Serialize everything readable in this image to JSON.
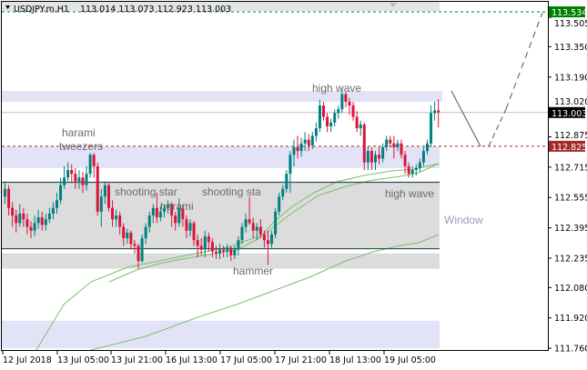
{
  "header": {
    "symbol": "USDJPY.m,H1",
    "ohlc_text": "113.014 113.073 112.923 113.003",
    "menu_icon": "triangle-down-icon"
  },
  "price_axis": {
    "ticks": [
      "113.505",
      "113.350",
      "113.190",
      "113.020",
      "112.875",
      "112.715",
      "112.555",
      "112.395",
      "112.235",
      "112.080",
      "111.920",
      "111.760"
    ],
    "tick_values": [
      113.505,
      113.35,
      113.19,
      113.02,
      112.875,
      112.715,
      112.555,
      112.395,
      112.235,
      112.08,
      111.92,
      111.76
    ],
    "marker_target": {
      "text": "113.534",
      "value": 113.534,
      "color": "#008000"
    },
    "marker_bid": {
      "text": "113.003",
      "value": 113.003,
      "color": "#000000"
    },
    "marker_level": {
      "text": "112.825",
      "value": 112.825,
      "color": "#a52a2a"
    }
  },
  "time_axis": {
    "labels": [
      "12 Jul 2018",
      "13 Jul 05:00",
      "13 Jul 21:00",
      "16 Jul 13:00",
      "17 Jul 05:00",
      "17 Jul 21:00",
      "18 Jul 13:00",
      "19 Jul 05:00"
    ]
  },
  "annotations": [
    {
      "text": "harami",
      "bar": 17
    },
    {
      "text": "tweezers",
      "bar": 17
    },
    {
      "text": "shooting star",
      "bar": 41
    },
    {
      "text": "harami",
      "bar": 48
    },
    {
      "text": "shooting sta",
      "bar": 66
    },
    {
      "text": "hammer",
      "bar": 71
    },
    {
      "text": "high wave",
      "bar": 91
    },
    {
      "text": "high wave",
      "bar": 111
    },
    {
      "text": "Window",
      "bar": 125
    }
  ],
  "zones": [
    {
      "type": "resistance",
      "from": 113.06,
      "to": 113.117,
      "color": "#e3e3f8"
    },
    {
      "type": "support",
      "from": 112.71,
      "to": 112.825,
      "color": "#e3e3f8"
    },
    {
      "type": "range",
      "from": 112.285,
      "to": 112.635,
      "color": "#dcdcdc"
    },
    {
      "type": "window",
      "from": 112.18,
      "to": 112.26,
      "color": "#dcdcdc"
    },
    {
      "type": "support",
      "from": 111.76,
      "to": 111.905,
      "color": "#e3e3f8"
    }
  ],
  "colors": {
    "bull": "#00807f",
    "bear": "#dc143c",
    "ma": "#7cbf6e"
  },
  "chart_data": {
    "type": "candlestick",
    "ylim": [
      111.76,
      113.534
    ],
    "ohlc": [
      [
        112.56,
        112.64,
        112.52,
        112.6
      ],
      [
        112.6,
        112.62,
        112.46,
        112.5
      ],
      [
        112.5,
        112.53,
        112.4,
        112.46
      ],
      [
        112.46,
        112.49,
        112.37,
        112.42
      ],
      [
        112.42,
        112.52,
        112.4,
        112.47
      ],
      [
        112.47,
        112.5,
        112.4,
        112.44
      ],
      [
        112.44,
        112.47,
        112.36,
        112.4
      ],
      [
        112.4,
        112.43,
        112.34,
        112.38
      ],
      [
        112.38,
        112.46,
        112.35,
        112.42
      ],
      [
        112.42,
        112.49,
        112.39,
        112.45
      ],
      [
        112.45,
        112.48,
        112.38,
        112.41
      ],
      [
        112.41,
        112.47,
        112.38,
        112.44
      ],
      [
        112.44,
        112.5,
        112.42,
        112.47
      ],
      [
        112.47,
        112.53,
        112.44,
        112.5
      ],
      [
        112.5,
        112.58,
        112.47,
        112.54
      ],
      [
        112.54,
        112.66,
        112.52,
        112.62
      ],
      [
        112.62,
        112.72,
        112.6,
        112.66
      ],
      [
        112.66,
        112.74,
        112.64,
        112.7
      ],
      [
        112.7,
        112.73,
        112.63,
        112.68
      ],
      [
        112.68,
        112.71,
        112.6,
        112.64
      ],
      [
        112.64,
        112.7,
        112.6,
        112.66
      ],
      [
        112.66,
        112.69,
        112.58,
        112.62
      ],
      [
        112.62,
        112.72,
        112.59,
        112.68
      ],
      [
        112.68,
        112.79,
        112.66,
        112.78
      ],
      [
        112.78,
        112.79,
        112.66,
        112.72
      ],
      [
        112.72,
        112.74,
        112.46,
        112.48
      ],
      [
        112.48,
        112.6,
        112.4,
        112.56
      ],
      [
        112.56,
        112.64,
        112.52,
        112.62
      ],
      [
        112.62,
        112.63,
        112.48,
        112.5
      ],
      [
        112.5,
        112.54,
        112.4,
        112.44
      ],
      [
        112.44,
        112.49,
        112.4,
        112.46
      ],
      [
        112.46,
        112.48,
        112.36,
        112.4
      ],
      [
        112.4,
        112.42,
        112.3,
        112.34
      ],
      [
        112.34,
        112.39,
        112.31,
        112.37
      ],
      [
        112.37,
        112.38,
        112.28,
        112.31
      ],
      [
        112.31,
        112.33,
        112.26,
        112.3
      ],
      [
        112.3,
        112.31,
        112.18,
        112.22
      ],
      [
        112.22,
        112.36,
        112.21,
        112.34
      ],
      [
        112.34,
        112.42,
        112.31,
        112.4
      ],
      [
        112.4,
        112.48,
        112.37,
        112.46
      ],
      [
        112.46,
        112.52,
        112.42,
        112.5
      ],
      [
        112.5,
        112.58,
        112.42,
        112.45
      ],
      [
        112.45,
        112.51,
        112.43,
        112.48
      ],
      [
        112.48,
        112.52,
        112.45,
        112.5
      ],
      [
        112.5,
        112.54,
        112.47,
        112.52
      ],
      [
        112.52,
        112.53,
        112.4,
        112.46
      ],
      [
        112.46,
        112.48,
        112.38,
        112.42
      ],
      [
        112.42,
        112.55,
        112.4,
        112.5
      ],
      [
        112.5,
        112.52,
        112.4,
        112.44
      ],
      [
        112.44,
        112.46,
        112.34,
        112.38
      ],
      [
        112.38,
        112.44,
        112.35,
        112.42
      ],
      [
        112.42,
        112.43,
        112.3,
        112.33
      ],
      [
        112.33,
        112.36,
        112.24,
        112.3
      ],
      [
        112.3,
        112.34,
        112.25,
        112.28
      ],
      [
        112.28,
        112.38,
        112.24,
        112.35
      ],
      [
        112.35,
        112.37,
        112.27,
        112.32
      ],
      [
        112.32,
        112.34,
        112.24,
        112.27
      ],
      [
        112.27,
        112.3,
        112.23,
        112.26
      ],
      [
        112.26,
        112.31,
        112.23,
        112.28
      ],
      [
        112.28,
        112.3,
        112.24,
        112.27
      ],
      [
        112.27,
        112.31,
        112.24,
        112.29
      ],
      [
        112.29,
        112.3,
        112.22,
        112.25
      ],
      [
        112.25,
        112.3,
        112.23,
        112.28
      ],
      [
        112.28,
        112.35,
        112.25,
        112.33
      ],
      [
        112.33,
        112.42,
        112.31,
        112.4
      ],
      [
        112.4,
        112.47,
        112.37,
        112.44
      ],
      [
        112.44,
        112.56,
        112.41,
        112.42
      ],
      [
        112.42,
        112.45,
        112.34,
        112.38
      ],
      [
        112.38,
        112.42,
        112.33,
        112.4
      ],
      [
        112.4,
        112.44,
        112.34,
        112.36
      ],
      [
        112.36,
        112.38,
        112.29,
        112.33
      ],
      [
        112.33,
        112.38,
        112.2,
        112.31
      ],
      [
        112.31,
        112.38,
        112.29,
        112.36
      ],
      [
        112.36,
        112.5,
        112.34,
        112.48
      ],
      [
        112.48,
        112.58,
        112.46,
        112.56
      ],
      [
        112.56,
        112.62,
        112.54,
        112.6
      ],
      [
        112.6,
        112.7,
        112.58,
        112.68
      ],
      [
        112.68,
        112.8,
        112.58,
        112.78
      ],
      [
        112.78,
        112.86,
        112.72,
        112.82
      ],
      [
        112.82,
        112.88,
        112.76,
        112.8
      ],
      [
        112.8,
        112.87,
        112.77,
        112.84
      ],
      [
        112.84,
        112.9,
        112.8,
        112.86
      ],
      [
        112.86,
        112.89,
        112.8,
        112.83
      ],
      [
        112.83,
        112.9,
        112.81,
        112.88
      ],
      [
        112.88,
        112.95,
        112.85,
        112.92
      ],
      [
        112.92,
        113.07,
        112.9,
        113.04
      ],
      [
        113.04,
        113.06,
        112.96,
        112.98
      ],
      [
        112.98,
        113.0,
        112.9,
        112.93
      ],
      [
        112.93,
        112.97,
        112.9,
        112.95
      ],
      [
        112.95,
        113.02,
        112.93,
        113.0
      ],
      [
        113.0,
        113.04,
        112.97,
        113.02
      ],
      [
        113.02,
        113.13,
        113.0,
        113.1
      ],
      [
        113.1,
        113.11,
        113.03,
        113.06
      ],
      [
        113.06,
        113.08,
        112.99,
        113.04
      ],
      [
        113.04,
        113.06,
        112.96,
        112.98
      ],
      [
        112.98,
        113.01,
        112.9,
        112.92
      ],
      [
        112.92,
        112.96,
        112.88,
        112.94
      ],
      [
        112.94,
        112.95,
        112.7,
        112.74
      ],
      [
        112.74,
        112.82,
        112.7,
        112.8
      ],
      [
        112.8,
        112.82,
        112.7,
        112.74
      ],
      [
        112.74,
        112.8,
        112.7,
        112.78
      ],
      [
        112.78,
        112.82,
        112.73,
        112.76
      ],
      [
        112.76,
        112.84,
        112.74,
        112.82
      ],
      [
        112.82,
        112.88,
        112.8,
        112.86
      ],
      [
        112.86,
        112.88,
        112.82,
        112.84
      ],
      [
        112.84,
        112.88,
        112.76,
        112.82
      ],
      [
        112.82,
        112.86,
        112.8,
        112.84
      ],
      [
        112.84,
        112.86,
        112.76,
        112.78
      ],
      [
        112.78,
        112.8,
        112.68,
        112.72
      ],
      [
        112.72,
        112.74,
        112.66,
        112.68
      ],
      [
        112.68,
        112.72,
        112.66,
        112.7
      ],
      [
        112.7,
        112.73,
        112.67,
        112.71
      ],
      [
        112.71,
        112.76,
        112.69,
        112.74
      ],
      [
        112.74,
        112.82,
        112.72,
        112.8
      ],
      [
        112.8,
        112.86,
        112.78,
        112.84
      ],
      [
        112.84,
        113.04,
        112.82,
        113.0
      ],
      [
        113.0,
        113.06,
        112.96,
        113.014
      ],
      [
        113.014,
        113.073,
        112.923,
        113.003
      ]
    ]
  }
}
